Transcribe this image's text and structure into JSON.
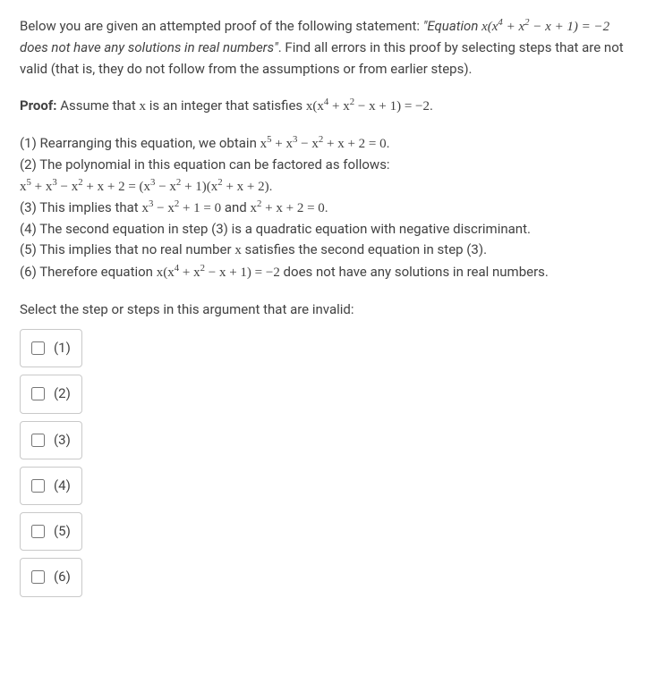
{
  "intro": {
    "pre": "Below you are given an attempted proof of the following statement: ",
    "statement_open": "\"Equation ",
    "statement_eq": "x(x⁴ + x² − x + 1) = −2",
    "statement_close": " does not have any solutions in real numbers\"",
    "post": ". Find all errors in this proof by selecting steps that are not valid (that is, they do not follow from the assumptions or from earlier steps)."
  },
  "proof_header": {
    "label": "Proof:",
    "text_pre": " Assume that ",
    "var": "x",
    "text_mid": " is an integer that satisfies ",
    "eq": "x(x⁴ + x² − x + 1) = −2",
    "text_post": "."
  },
  "steps": {
    "s1_a": "(1) Rearranging this equation, we obtain ",
    "s1_eq": "x⁵ + x³ − x² + x + 2 = 0",
    "s1_b": ".",
    "s2_a": "(2) The polynomial in this equation can be factored as follows: ",
    "s2_eq": "x⁵ + x³ − x² + x + 2 = (x³ − x² + 1)(x² + x + 2)",
    "s2_b": ".",
    "s3_a": "(3) This implies that ",
    "s3_eq1": "x³ − x² + 1 = 0",
    "s3_mid": " and ",
    "s3_eq2": "x² + x + 2 = 0",
    "s3_b": ".",
    "s4": "(4) The second equation in step (3) is a quadratic equation with negative discriminant.",
    "s5_a": "(5) This implies that no real number ",
    "s5_var": "x",
    "s5_b": " satisfies the second equation in step (3).",
    "s6_a": "(6) Therefore equation ",
    "s6_eq": "x(x⁴ + x² − x + 1) = −2",
    "s6_b": " does not have any solutions in real numbers."
  },
  "select_prompt": "Select the step or steps in this argument that are invalid:",
  "options": [
    {
      "label": "(1)"
    },
    {
      "label": "(2)"
    },
    {
      "label": "(3)"
    },
    {
      "label": "(4)"
    },
    {
      "label": "(5)"
    },
    {
      "label": "(6)"
    }
  ],
  "colors": {
    "text": "#424242",
    "border": "#c9c9c9",
    "bg": "#ffffff"
  }
}
